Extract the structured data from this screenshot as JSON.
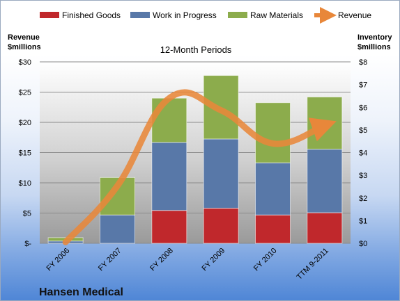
{
  "chart_data": {
    "type": "bar",
    "title": "12-Month Periods",
    "brand": "Hansen Medical",
    "categories": [
      "FY 2006",
      "FY 2007",
      "FY 2008",
      "FY 2009",
      "FY 2010",
      "TTM 9-2011"
    ],
    "left_axis": {
      "label_line1": "Revenue",
      "label_line2": "$millions",
      "ylim": [
        0,
        30
      ],
      "ticks": [
        0,
        5,
        10,
        15,
        20,
        25,
        30
      ],
      "tick_labels": [
        "$-",
        "$5",
        "$10",
        "$15",
        "$20",
        "$25",
        "$30"
      ]
    },
    "right_axis": {
      "label_line1": "Inventory",
      "label_line2": "$millions",
      "ylim": [
        0,
        8
      ],
      "ticks": [
        0,
        1,
        2,
        3,
        4,
        5,
        6,
        7,
        8
      ],
      "tick_labels": [
        "$0",
        "$1",
        "$2",
        "$3",
        "$4",
        "$5",
        "$6",
        "$7",
        "$8"
      ]
    },
    "series": [
      {
        "name": "Finished Goods",
        "kind": "stacked-bar",
        "axis": "right",
        "color": "#c0282c",
        "values": [
          0,
          0,
          1.45,
          1.55,
          1.25,
          1.35
        ]
      },
      {
        "name": "Work in Progress",
        "kind": "stacked-bar",
        "axis": "right",
        "color": "#5878a8",
        "values": [
          0.1,
          1.25,
          3.0,
          3.05,
          2.3,
          2.8
        ]
      },
      {
        "name": "Raw Materials",
        "kind": "stacked-bar",
        "axis": "right",
        "color": "#8cac4c",
        "values": [
          0.15,
          1.65,
          1.95,
          2.8,
          2.65,
          2.3
        ]
      },
      {
        "name": "Revenue",
        "kind": "line",
        "axis": "left",
        "color": "#e8873a",
        "values": [
          0.2,
          9.5,
          24.0,
          22.0,
          16.5,
          19.5
        ]
      }
    ],
    "grid": true,
    "legend_position": "top"
  }
}
